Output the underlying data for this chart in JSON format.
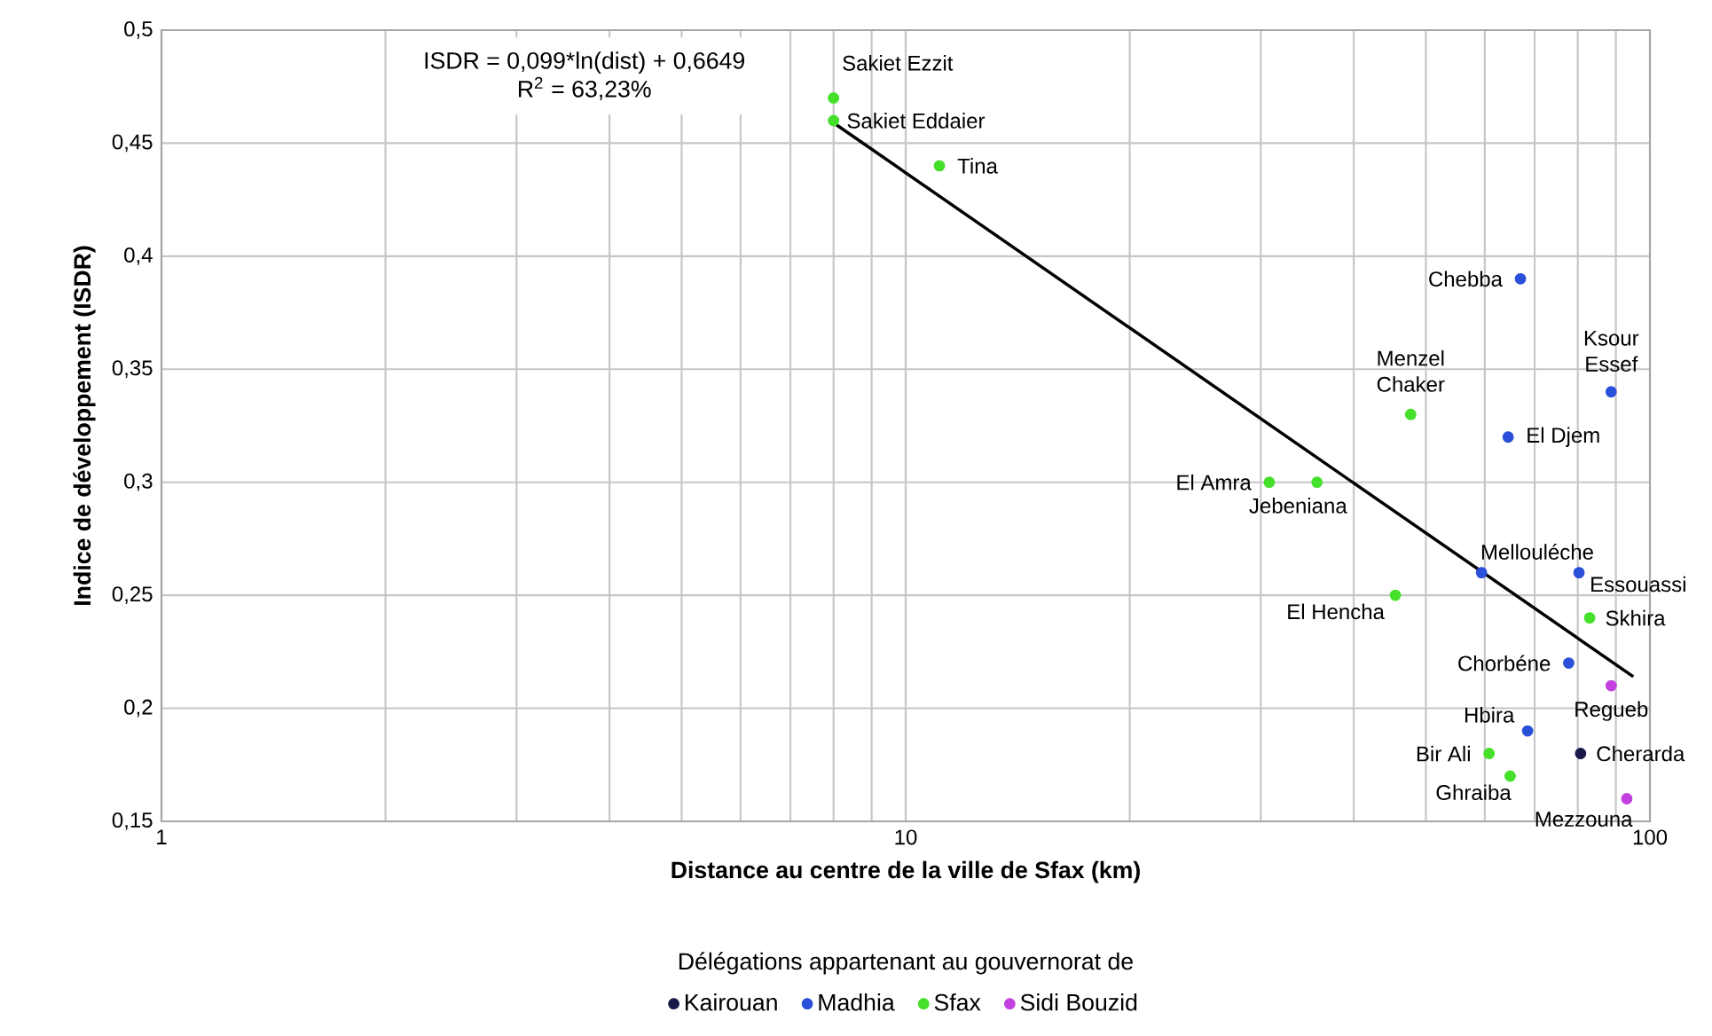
{
  "chart_data": {
    "type": "scatter",
    "xlabel": "Distance au centre de la ville de Sfax (km)",
    "ylabel": "Indice de développement (ISDR)",
    "legend_title": "Délégations appartenant au gouvernorat de",
    "log": "x",
    "grid": true,
    "legend": "bottom",
    "xlim": [
      1,
      100
    ],
    "xticks": [
      1,
      10,
      100
    ],
    "ylim": [
      0.15,
      0.5
    ],
    "yticks": [
      {
        "value": 0.15,
        "label": "0,15"
      },
      {
        "value": 0.2,
        "label": "0,2"
      },
      {
        "value": 0.25,
        "label": "0,25"
      },
      {
        "value": 0.3,
        "label": "0,3"
      },
      {
        "value": 0.35,
        "label": "0,35"
      },
      {
        "value": 0.4,
        "label": "0,4"
      },
      {
        "value": 0.45,
        "label": "0,45"
      },
      {
        "value": 0.5,
        "label": "0,5"
      }
    ],
    "series": [
      {
        "name": "Kairouan",
        "marker": "circle",
        "color": "#1a1a4a",
        "x": [
          80.7
        ],
        "values": [
          0.18
        ]
      },
      {
        "name": "Madhia",
        "marker": "circle",
        "color": "#2a4fd8",
        "x": [
          67,
          88.7,
          64.5,
          59.4,
          80.3,
          77.8,
          68.5
        ],
        "values": [
          0.39,
          0.34,
          0.32,
          0.26,
          0.26,
          0.22,
          0.19
        ]
      },
      {
        "name": "Sfax",
        "marker": "circle",
        "color": "#44e02a",
        "x": [
          8,
          8,
          11.1,
          47.7,
          30.8,
          35.7,
          45.5,
          83,
          60.8,
          64.9
        ],
        "values": [
          0.47,
          0.46,
          0.44,
          0.33,
          0.3,
          0.3,
          0.25,
          0.24,
          0.18,
          0.17
        ]
      },
      {
        "name": "Sidi Bouzid",
        "marker": "circle",
        "color": "#c040e0",
        "x": [
          88.7,
          93.1
        ],
        "values": [
          0.21,
          0.16
        ]
      },
      {
        "type": "line",
        "marker": "none",
        "color": "#000000",
        "x": [
          8,
          95
        ],
        "values": [
          0.459,
          0.214
        ]
      }
    ],
    "annotations": [
      "ISDR = 0,099*ln(dist) + 0,6649",
      "R$^{2}$ = 63,23%",
      {
        "text": "Sakiet Ezzit",
        "x": 8,
        "y": 0.47
      },
      {
        "text": "Sakiet Eddaier",
        "x": 8,
        "y": 0.46
      },
      {
        "text": "Tina",
        "x": 11.1,
        "y": 0.44
      },
      {
        "text": "Chebba",
        "x": 67,
        "y": 0.39
      },
      {
        "text": "Ksour Essef",
        "x": 88.7,
        "y": 0.34
      },
      {
        "text": "Menzel Chaker",
        "x": 47.7,
        "y": 0.33
      },
      {
        "text": "El Djem",
        "x": 64.5,
        "y": 0.32
      },
      {
        "text": "El Amra",
        "x": 30.8,
        "y": 0.3
      },
      {
        "text": "Jebeniana",
        "x": 35.7,
        "y": 0.3
      },
      {
        "text": "Mellouléche",
        "x": 59.4,
        "y": 0.26
      },
      {
        "text": "Essouassi",
        "x": 80.3,
        "y": 0.26
      },
      {
        "text": "El Hencha",
        "x": 45.5,
        "y": 0.25
      },
      {
        "text": "Skhira",
        "x": 83,
        "y": 0.24
      },
      {
        "text": "Chorbéne",
        "x": 77.8,
        "y": 0.22
      },
      {
        "text": "Regueb",
        "x": 88.7,
        "y": 0.21
      },
      {
        "text": "Hbira",
        "x": 68.5,
        "y": 0.19
      },
      {
        "text": "Bir Ali",
        "x": 60.8,
        "y": 0.18
      },
      {
        "text": "Cherarda",
        "x": 80.7,
        "y": 0.18
      },
      {
        "text": "Ghraiba",
        "x": 64.9,
        "y": 0.17
      },
      {
        "text": "Mezzouna",
        "x": 93.1,
        "y": 0.16
      }
    ]
  }
}
